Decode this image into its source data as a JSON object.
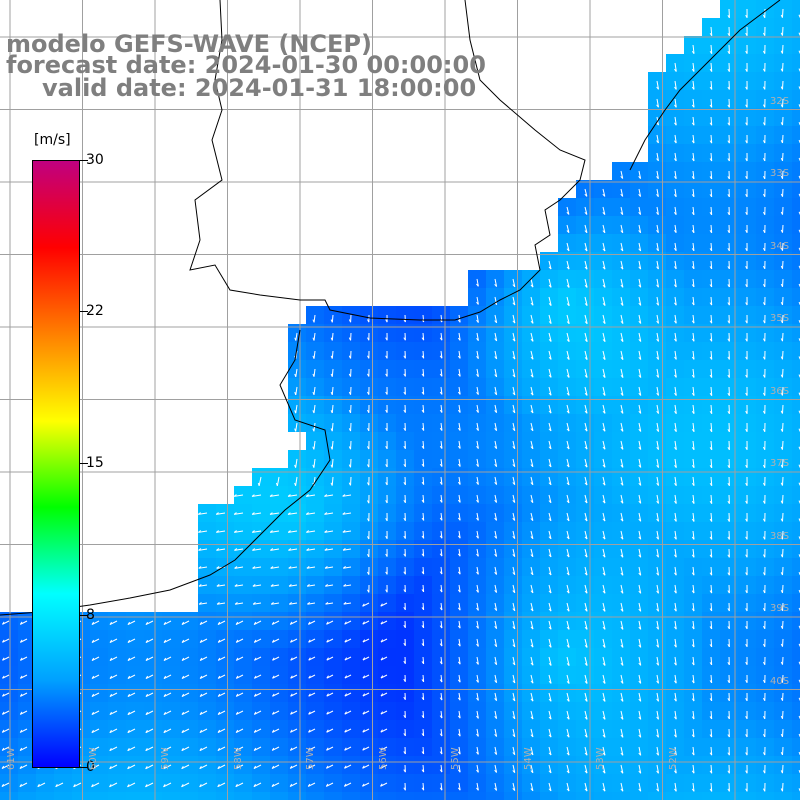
{
  "title": {
    "line1": "modelo GEFS-WAVE (NCEP)",
    "line2": "forecast date: 2024-01-30 00:00:00",
    "line3": "valid date: 2024-01-31 18:00:00"
  },
  "colorbar": {
    "unit": "[m/s]",
    "ticks": [
      "30",
      "22",
      "15",
      "8",
      "0"
    ],
    "colors": [
      "#0000ff",
      "#00a0ff",
      "#00ffff",
      "#00ff00",
      "#ffff00",
      "#ff8000",
      "#ff0000",
      "#c00080"
    ]
  },
  "lat_labels": [
    "32S",
    "33S",
    "34S",
    "35S",
    "36S",
    "37S",
    "38S",
    "39S",
    "40S"
  ],
  "lon_labels": [
    "61W",
    "60W",
    "59W",
    "58W",
    "57W",
    "56W",
    "55W",
    "54W",
    "53W",
    "52W"
  ],
  "colors": {
    "land": "#ffffff",
    "grid": "#a0a0a0",
    "coast": "#000000",
    "arrow": "#ffffff"
  }
}
